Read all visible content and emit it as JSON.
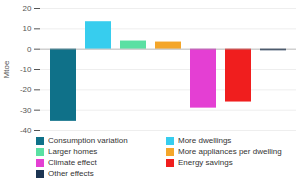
{
  "chart_data": {
    "type": "bar",
    "categories": [
      "Consumption variation",
      "More dwellings",
      "Larger homes",
      "More appliances per dwelling",
      "Climate effect",
      "Energy savings",
      "Other effects"
    ],
    "values": [
      -35.5,
      13.5,
      4,
      3.5,
      -29,
      -26,
      -0.8
    ],
    "colors": [
      "#0f7189",
      "#37cdee",
      "#5ae0a3",
      "#f4a62a",
      "#e43fd3",
      "#f01e1e",
      "#1c3452"
    ],
    "y_label": "Mtoe",
    "ylim": [
      -40,
      20
    ],
    "yticks": [
      -40,
      -30,
      -20,
      -10,
      0,
      10,
      20
    ],
    "grid": true,
    "legend": "bottom",
    "tick_labels": "y"
  }
}
